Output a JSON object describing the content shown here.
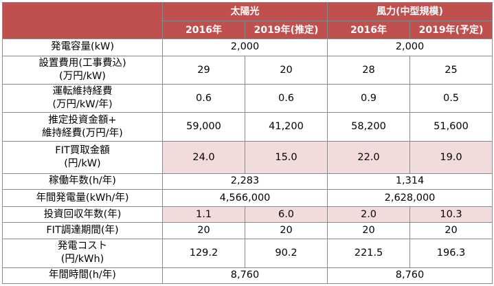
{
  "header": {
    "groups": [
      "太陽光",
      "風力(中型規模)"
    ],
    "columns": [
      "2016年",
      "2019年(推定)",
      "2016年",
      "2019年(予定)"
    ]
  },
  "rows": [
    {
      "label": "発電容量(kW)",
      "cells": [
        "2,000",
        "2,000"
      ],
      "merged": true
    },
    {
      "label": "設置費用(工事費込)\n(万円/kW)",
      "cells": [
        "29",
        "20",
        "28",
        "25"
      ]
    },
    {
      "label": "運転維持経費\n(万円/kW/年)",
      "cells": [
        "0.6",
        "0.6",
        "0.9",
        "0.5"
      ]
    },
    {
      "label": "推定投資金額+\n維持経費(万円/年)",
      "cells": [
        "59,000",
        "41,200",
        "58,200",
        "51,600"
      ]
    },
    {
      "label": "FIT買取金額\n(円/kW)",
      "cells": [
        "24.0",
        "15.0",
        "22.0",
        "19.0"
      ],
      "highlight": true
    },
    {
      "label": "稼働年数(h/年)",
      "cells": [
        "2,283",
        "1,314"
      ],
      "merged": true
    },
    {
      "label": "年間発電量(kWh/年)",
      "cells": [
        "4,566,000",
        "2,628,000"
      ],
      "merged": true
    },
    {
      "label": "投資回収年数(年)",
      "cells": [
        "1.1",
        "6.0",
        "2.0",
        "10.3"
      ],
      "highlight": true
    },
    {
      "label": "FIT調達期間(年)",
      "cells": [
        "20",
        "20",
        "20",
        "20"
      ]
    },
    {
      "label": "発電コスト\n(円/kWh)",
      "cells": [
        "129.2",
        "90.2",
        "221.5",
        "196.3"
      ]
    },
    {
      "label": "年間時間(h/年)",
      "cells": [
        "8,760",
        "8,760"
      ],
      "merged": true
    }
  ],
  "colors": {
    "header_bg": "#c0504d",
    "header_text": "#ffffff",
    "highlight_bg": "#f2dcdb",
    "border": "#8a8a8a"
  }
}
